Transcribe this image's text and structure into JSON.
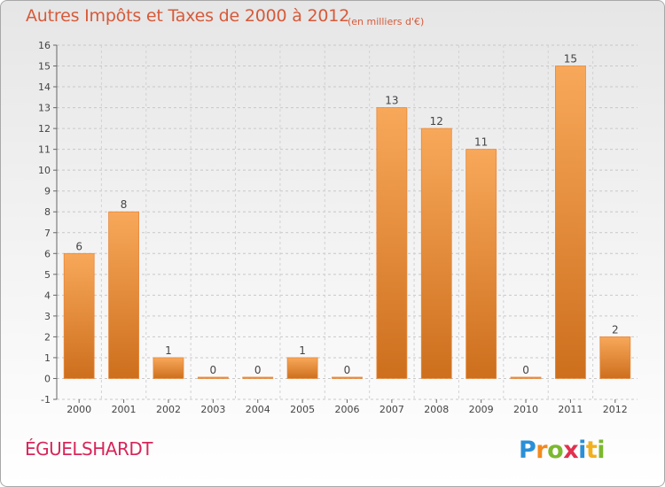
{
  "header": {
    "title": "Autres Impôts et Taxes de 2000 à 2012",
    "subtitle": "(en milliers d'€)"
  },
  "footer": {
    "commune": "ÉGUELSHARDT",
    "logo_text": "Proxiti"
  },
  "colors": {
    "bar_top": "#f8a85a",
    "bar_bottom": "#cd6f1d",
    "title": "#d65a3a",
    "commune": "#d7265a"
  },
  "chart_data": {
    "type": "bar",
    "title": "Autres Impôts et Taxes de 2000 à 2012",
    "subtitle": "(en milliers d'€)",
    "categories": [
      "2000",
      "2001",
      "2002",
      "2003",
      "2004",
      "2005",
      "2006",
      "2007",
      "2008",
      "2009",
      "2010",
      "2011",
      "2012"
    ],
    "values": [
      6,
      8,
      1,
      0,
      0,
      1,
      0,
      13,
      12,
      11,
      0,
      15,
      2
    ],
    "ylim": [
      -1,
      16
    ],
    "yticks": [
      -1,
      0,
      1,
      2,
      3,
      4,
      5,
      6,
      7,
      8,
      9,
      10,
      11,
      12,
      13,
      14,
      15,
      16
    ],
    "grid": true,
    "data_labels": true
  }
}
